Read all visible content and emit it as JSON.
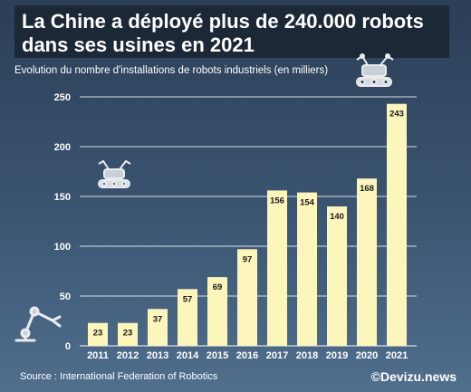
{
  "header": {
    "title_line1": "La Chine a déployé plus de 240.000 robots",
    "title_line2": "dans ses usines en 2021",
    "subtitle": "Evolution du nombre d'installations de robots industriels (en milliers)"
  },
  "footer": {
    "source": "Source : International Federation of Robotics",
    "brand": "©Devizu.news"
  },
  "colors": {
    "bar": "#fcf5bc",
    "grid": "#d8dee6",
    "text": "#ffffff"
  },
  "chart_data": {
    "type": "bar",
    "categories": [
      "2011",
      "2012",
      "2013",
      "2014",
      "2015",
      "2016",
      "2017",
      "2018",
      "2019",
      "2020",
      "2021"
    ],
    "values": [
      23,
      23,
      37,
      57,
      69,
      97,
      156,
      154,
      140,
      168,
      243
    ],
    "title": "La Chine a déployé plus de 240.000 robots dans ses usines en 2021",
    "ylabel": "Evolution du nombre d'installations de robots industriels (en milliers)",
    "ylim": [
      0,
      250
    ],
    "yticks": [
      0,
      50,
      100,
      150,
      200,
      250
    ],
    "grid": true,
    "data_labels": true
  }
}
